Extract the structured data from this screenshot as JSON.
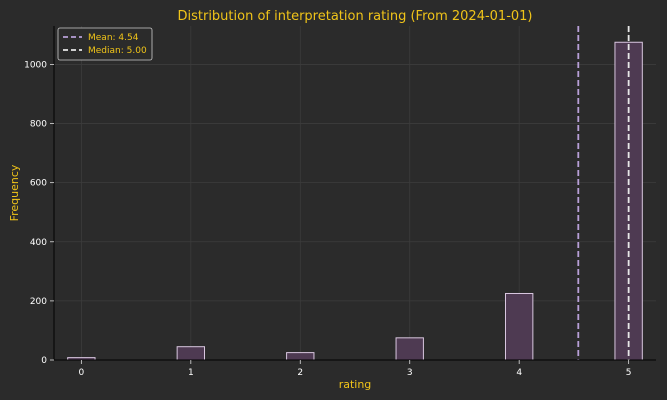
{
  "chart_data": {
    "type": "bar",
    "title": "Distribution of interpretation rating (From 2024-01-01)",
    "xlabel": "rating",
    "ylabel": "Frequency",
    "xlim": [
      -0.25,
      5.25
    ],
    "ylim": [
      0,
      1130
    ],
    "xticks": [
      "0",
      "1",
      "2",
      "3",
      "4",
      "5"
    ],
    "yticks": [
      "0",
      "200",
      "400",
      "600",
      "800",
      "1000"
    ],
    "grid": true,
    "legend_position": "top-left",
    "bars": [
      {
        "x": 0,
        "value": 8
      },
      {
        "x": 1,
        "value": 45
      },
      {
        "x": 2,
        "value": 25
      },
      {
        "x": 3,
        "value": 75
      },
      {
        "x": 4,
        "value": 225
      },
      {
        "x": 5,
        "value": 1075
      }
    ],
    "bar_width_units": 0.25,
    "lines": [
      {
        "name": "Mean: 4.54",
        "x": 4.54,
        "color": "#b8a0d8"
      },
      {
        "name": "Median: 5.00",
        "x": 5.0,
        "color": "#e8e8e8"
      }
    ],
    "colors": {
      "bar_fill": "#4e3a52",
      "bar_edge": "#d9c7e0",
      "background": "#2b2b2b",
      "grid": "#3c3c3c",
      "title": "#f0c419",
      "axis": "#000000"
    }
  }
}
